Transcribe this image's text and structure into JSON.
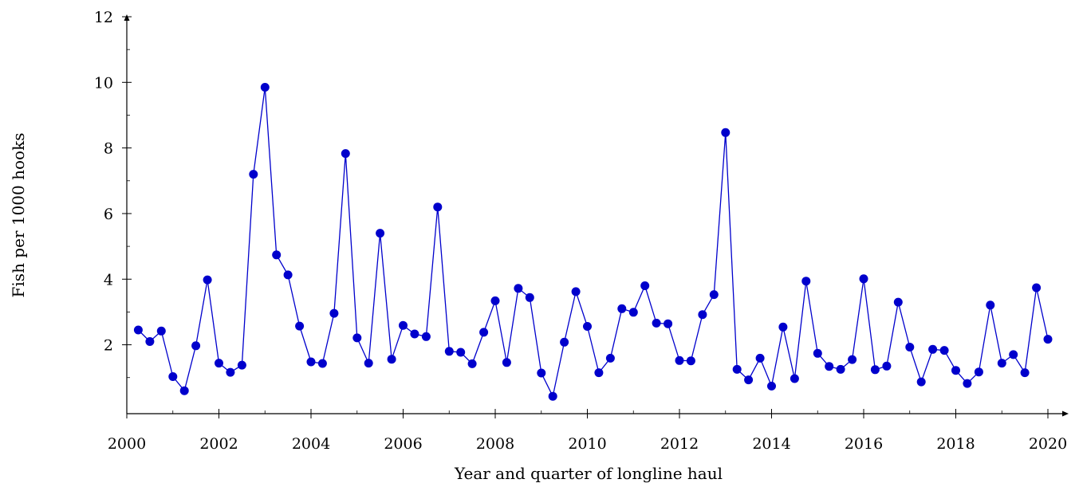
{
  "chart_data": {
    "type": "line",
    "xlabel": "Year and quarter of longline haul",
    "ylabel": "Fish per 1000 hooks",
    "xlim": [
      2000,
      2020
    ],
    "ylim": [
      -0.1,
      12
    ],
    "xticks": [
      2000,
      2002,
      2004,
      2006,
      2008,
      2010,
      2012,
      2014,
      2016,
      2018,
      2020
    ],
    "yticks": [
      2,
      4,
      6,
      8,
      10,
      12
    ],
    "xtick_labels": [
      "2000",
      "2002",
      "2004",
      "2006",
      "2008",
      "2010",
      "2012",
      "2014",
      "2016",
      "2018",
      "2020"
    ],
    "ytick_labels": [
      "2",
      "4",
      "6",
      "8",
      "10",
      "12"
    ],
    "grid": false,
    "color": "#0000cc",
    "series": [
      {
        "x": [
          2000.25,
          2000.5,
          2000.75,
          2001,
          2001.25,
          2001.5,
          2001.75,
          2002,
          2002.25,
          2002.5,
          2002.75,
          2003,
          2003.25,
          2003.5,
          2003.75,
          2004,
          2004.25,
          2004.5,
          2004.75,
          2005,
          2005.25,
          2005.5,
          2005.75,
          2006,
          2006.25,
          2006.5,
          2006.75,
          2007,
          2007.25,
          2007.5,
          2007.75,
          2008,
          2008.25,
          2008.5,
          2008.75,
          2009,
          2009.25,
          2009.5,
          2009.75,
          2010,
          2010.25,
          2010.5,
          2010.75,
          2011,
          2011.25,
          2011.5,
          2011.75,
          2012,
          2012.25,
          2012.5,
          2012.75,
          2013,
          2013.25,
          2013.5,
          2013.75,
          2014,
          2014.25,
          2014.5,
          2014.75,
          2015,
          2015.25,
          2015.5,
          2015.75,
          2016,
          2016.25,
          2016.5,
          2016.75,
          2017,
          2017.25,
          2017.5,
          2017.75,
          2018,
          2018.25,
          2018.5,
          2018.75,
          2019,
          2019.25,
          2019.5,
          2019.75,
          2020
        ],
        "values": [
          2.45,
          2.1,
          2.42,
          1.03,
          0.6,
          1.97,
          3.98,
          1.44,
          1.16,
          1.38,
          7.2,
          9.85,
          4.74,
          4.13,
          2.57,
          1.48,
          1.43,
          2.96,
          7.83,
          2.21,
          1.44,
          5.4,
          1.56,
          2.59,
          2.33,
          2.25,
          6.2,
          1.8,
          1.77,
          1.42,
          2.38,
          3.34,
          1.46,
          3.72,
          3.44,
          1.14,
          0.43,
          2.08,
          3.62,
          2.56,
          1.15,
          1.59,
          3.1,
          2.99,
          3.8,
          2.66,
          2.64,
          1.52,
          1.51,
          2.92,
          3.53,
          8.47,
          1.25,
          0.93,
          1.59,
          0.74,
          2.54,
          0.97,
          3.94,
          1.74,
          1.34,
          1.25,
          1.55,
          4.01,
          1.24,
          1.35,
          3.3,
          1.93,
          0.87,
          1.86,
          1.83,
          1.22,
          0.82,
          1.17,
          3.21,
          1.44,
          1.7,
          1.15,
          3.74,
          2.17
        ]
      }
    ]
  }
}
